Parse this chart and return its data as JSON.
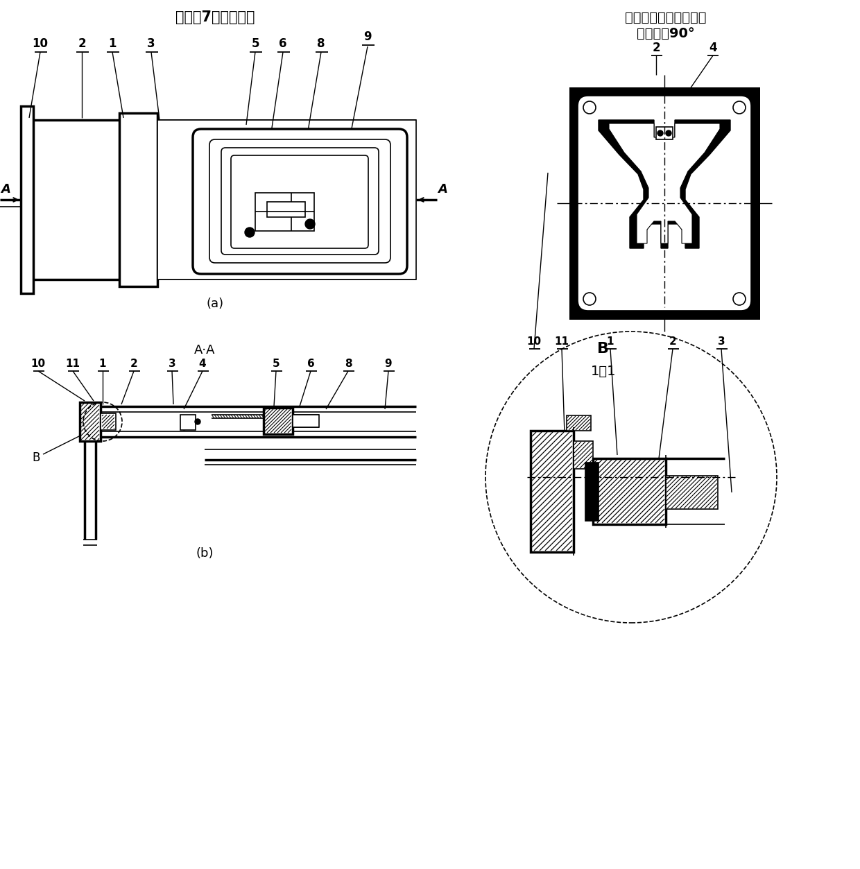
{
  "title_a": "隐藏件7（窗口盖）",
  "title_tr_line1": "隐藏前盖及连接器插座",
  "title_tr_line2": "向左旋轣90°",
  "label_a": "(a)",
  "label_b": "(b)",
  "label_aa": "A·A",
  "bg_color": "#ffffff"
}
